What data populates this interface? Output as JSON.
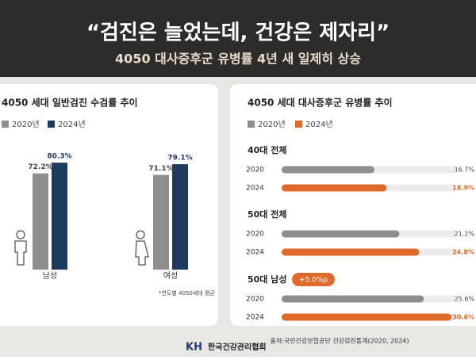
{
  "header": {
    "title": "“검진은 늘었는데, 건강은 제자리”",
    "subtitle": "4050 대사증후군 유병률 4년 새 일제히 상승"
  },
  "chart_data": [
    {
      "type": "bar",
      "title": "4050 세대 일반검진 수검률 추이",
      "categories": [
        "남성",
        "여성"
      ],
      "series": [
        {
          "name": "2020년",
          "color": "#8e8e8e",
          "values": [
            72.2,
            71.1
          ],
          "value_labels": [
            "72.2%",
            "71.1%"
          ]
        },
        {
          "name": "2024년",
          "color": "#1f3a5f",
          "values": [
            80.3,
            79.1
          ],
          "value_labels": [
            "80.3%",
            "79.1%"
          ]
        }
      ],
      "footnote": "*연도별 4050세대 평균"
    },
    {
      "type": "hbar",
      "title": "4050 세대 대사증후군 유병률 추이",
      "categories": [
        "40대 전체",
        "50대 전체",
        "50대 남성"
      ],
      "row_labels": [
        "2020",
        "2024"
      ],
      "series": [
        {
          "name": "2020년",
          "color": "#8e8e8e",
          "values": [
            16.7,
            21.2,
            25.6
          ],
          "value_labels": [
            "16.7%",
            "21.2%",
            "25.6%"
          ]
        },
        {
          "name": "2024년",
          "color": "#e06a2a",
          "values": [
            18.9,
            24.8,
            30.6
          ],
          "value_labels": [
            "18.9%",
            "24.8%",
            "30.6%"
          ]
        }
      ],
      "annotations": [
        {
          "text": "+5.0%p"
        }
      ]
    }
  ],
  "source": "출처:국민건강보험공단 건강검진통계(2020, 2024)",
  "logo": {
    "mark": "KH",
    "name": "한국건강관리협회"
  }
}
